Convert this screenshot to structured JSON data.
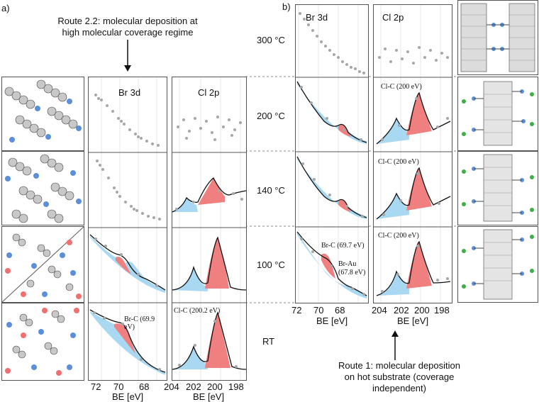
{
  "figure": {
    "panel_a_label": "a)",
    "panel_b_label": "b)",
    "route22_caption": "Route 2.2: molecular deposition at high molecular coverage regime",
    "route1_caption": "Route 1: molecular deposition on hot substrate (coverage independent)",
    "temperatures": [
      "300 °C",
      "200 °C",
      "140 °C",
      "100 °C",
      "RT"
    ],
    "panel_a_headers": {
      "br": "Br 3d",
      "cl": "Cl 2p"
    },
    "panel_b_headers": {
      "br": "Br 3d",
      "cl": "Cl 2p"
    },
    "axis_label": "BE [eV]",
    "br_ticks": [
      "72",
      "70",
      "68"
    ],
    "cl_ticks": [
      "204",
      "202",
      "200",
      "198"
    ],
    "annotations_a": {
      "br_rt": "Br-C (69.9 eV)",
      "cl_rt": "Cl-C (200.2 eV)"
    },
    "annotations_b": {
      "br_100_brc": "Br-C (69.7 eV)",
      "br_100_brau": "Br-Au",
      "br_100_brau_val": "(67.8 eV)",
      "cl_200": "Cl-C (200 eV)",
      "cl_140": "Cl-C (200 eV)",
      "cl_100": "Cl-C (200 eV)"
    },
    "colors": {
      "blue": "#a9d8f2",
      "red": "#f08080",
      "dots": "#a6a6a6",
      "grid": "#c8c8c8"
    }
  }
}
